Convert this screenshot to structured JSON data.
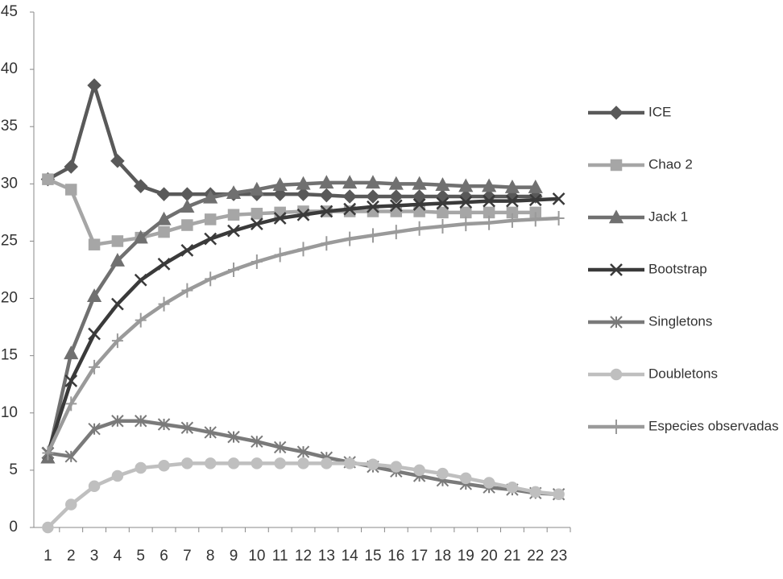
{
  "chart_data": {
    "type": "line",
    "categories": [
      "1",
      "2",
      "3",
      "4",
      "5",
      "6",
      "7",
      "8",
      "9",
      "10",
      "11",
      "12",
      "13",
      "14",
      "15",
      "16",
      "17",
      "18",
      "19",
      "20",
      "21",
      "22",
      "23"
    ],
    "ylim": [
      0,
      45
    ],
    "yticks": [
      0,
      5,
      10,
      15,
      20,
      25,
      30,
      35,
      40,
      45
    ],
    "grid": false,
    "legend": "right",
    "series": [
      {
        "name": "ICE",
        "color": "#595959",
        "marker": "diamond",
        "values": [
          30.4,
          31.5,
          38.6,
          32,
          29.8,
          29.1,
          29.1,
          29.1,
          29.1,
          29.1,
          29.1,
          29.1,
          29.0,
          28.9,
          28.9,
          28.9,
          28.9,
          28.9,
          28.9,
          28.9,
          28.9,
          28.9,
          null
        ]
      },
      {
        "name": "Chao 2",
        "color": "#a6a6a6",
        "marker": "square",
        "values": [
          30.4,
          29.5,
          24.7,
          25.0,
          25.3,
          25.8,
          26.4,
          26.9,
          27.3,
          27.4,
          27.5,
          27.6,
          27.6,
          27.6,
          27.6,
          27.6,
          27.6,
          27.5,
          27.5,
          27.5,
          27.5,
          27.5,
          null
        ]
      },
      {
        "name": "Jack 1",
        "color": "#707070",
        "marker": "triangle",
        "values": [
          6.1,
          15.2,
          20.2,
          23.3,
          25.3,
          26.9,
          28.0,
          28.8,
          29.2,
          29.5,
          29.9,
          30.0,
          30.1,
          30.1,
          30.1,
          30.0,
          30.0,
          29.9,
          29.8,
          29.8,
          29.7,
          29.7,
          null
        ]
      },
      {
        "name": "Bootstrap",
        "color": "#3a3a3a",
        "marker": "x",
        "values": [
          6.5,
          12.8,
          16.9,
          19.5,
          21.6,
          23.0,
          24.2,
          25.2,
          25.9,
          26.5,
          27.0,
          27.3,
          27.6,
          27.8,
          28.0,
          28.1,
          28.2,
          28.3,
          28.4,
          28.5,
          28.5,
          28.6,
          28.7
        ]
      },
      {
        "name": "Singletons",
        "color": "#7a7a7a",
        "marker": "asterisk",
        "values": [
          6.5,
          6.2,
          8.6,
          9.3,
          9.3,
          9.0,
          8.7,
          8.3,
          7.9,
          7.5,
          7.0,
          6.6,
          6.1,
          5.7,
          5.3,
          4.9,
          4.5,
          4.1,
          3.8,
          3.5,
          3.3,
          3.0,
          2.9
        ]
      },
      {
        "name": "Doubletons",
        "color": "#bfbfbf",
        "marker": "circle",
        "values": [
          0,
          2.0,
          3.6,
          4.5,
          5.2,
          5.4,
          5.6,
          5.6,
          5.6,
          5.6,
          5.6,
          5.6,
          5.6,
          5.6,
          5.5,
          5.3,
          5.0,
          4.7,
          4.3,
          3.9,
          3.5,
          3.1,
          2.9
        ]
      },
      {
        "name": "Especies observadas",
        "color": "#9a9a9a",
        "marker": "plus",
        "values": [
          6.5,
          10.8,
          14.0,
          16.3,
          18.1,
          19.5,
          20.7,
          21.7,
          22.5,
          23.2,
          23.8,
          24.3,
          24.8,
          25.2,
          25.5,
          25.8,
          26.1,
          26.3,
          26.5,
          26.6,
          26.8,
          26.9,
          27.0
        ]
      }
    ]
  }
}
